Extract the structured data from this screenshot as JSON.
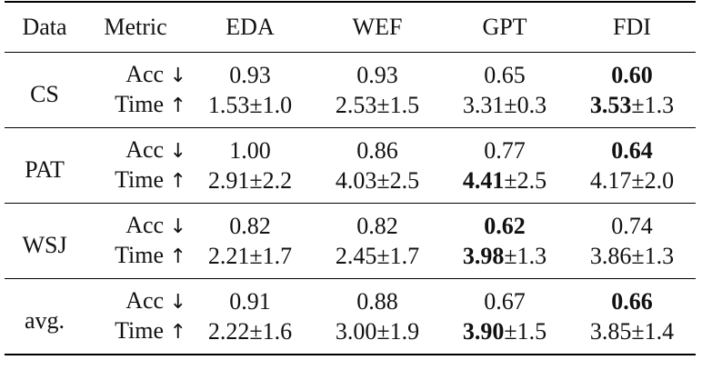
{
  "table": {
    "header": {
      "data": "Data",
      "metric": "Metric",
      "methods": [
        "EDA",
        "WEF",
        "GPT",
        "FDI"
      ]
    },
    "rows": [
      {
        "dataset": "CS",
        "acc": {
          "label": "Acc",
          "arrow": "↓",
          "cells": [
            {
              "main": "0.93",
              "pm": "",
              "bold": false
            },
            {
              "main": "0.93",
              "pm": "",
              "bold": false
            },
            {
              "main": "0.65",
              "pm": "",
              "bold": false
            },
            {
              "main": "0.60",
              "pm": "",
              "bold": true
            }
          ]
        },
        "time": {
          "label": "Time",
          "arrow": "↑",
          "cells": [
            {
              "main": "1.53",
              "pm": "±1.0",
              "bold": false
            },
            {
              "main": "2.53",
              "pm": "±1.5",
              "bold": false
            },
            {
              "main": "3.31",
              "pm": "±0.3",
              "bold": false
            },
            {
              "main": "3.53",
              "pm": "±1.3",
              "bold": true
            }
          ]
        }
      },
      {
        "dataset": "PAT",
        "acc": {
          "label": "Acc",
          "arrow": "↓",
          "cells": [
            {
              "main": "1.00",
              "pm": "",
              "bold": false
            },
            {
              "main": "0.86",
              "pm": "",
              "bold": false
            },
            {
              "main": "0.77",
              "pm": "",
              "bold": false
            },
            {
              "main": "0.64",
              "pm": "",
              "bold": true
            }
          ]
        },
        "time": {
          "label": "Time",
          "arrow": "↑",
          "cells": [
            {
              "main": "2.91",
              "pm": "±2.2",
              "bold": false
            },
            {
              "main": "4.03",
              "pm": "±2.5",
              "bold": false
            },
            {
              "main": "4.41",
              "pm": "±2.5",
              "bold": true
            },
            {
              "main": "4.17",
              "pm": "±2.0",
              "bold": false
            }
          ]
        }
      },
      {
        "dataset": "WSJ",
        "acc": {
          "label": "Acc",
          "arrow": "↓",
          "cells": [
            {
              "main": "0.82",
              "pm": "",
              "bold": false
            },
            {
              "main": "0.82",
              "pm": "",
              "bold": false
            },
            {
              "main": "0.62",
              "pm": "",
              "bold": true
            },
            {
              "main": "0.74",
              "pm": "",
              "bold": false
            }
          ]
        },
        "time": {
          "label": "Time",
          "arrow": "↑",
          "cells": [
            {
              "main": "2.21",
              "pm": "±1.7",
              "bold": false
            },
            {
              "main": "2.45",
              "pm": "±1.7",
              "bold": false
            },
            {
              "main": "3.98",
              "pm": "±1.3",
              "bold": true
            },
            {
              "main": "3.86",
              "pm": "±1.3",
              "bold": false
            }
          ]
        }
      },
      {
        "dataset": "avg.",
        "acc": {
          "label": "Acc",
          "arrow": "↓",
          "cells": [
            {
              "main": "0.91",
              "pm": "",
              "bold": false
            },
            {
              "main": "0.88",
              "pm": "",
              "bold": false
            },
            {
              "main": "0.67",
              "pm": "",
              "bold": false
            },
            {
              "main": "0.66",
              "pm": "",
              "bold": true
            }
          ]
        },
        "time": {
          "label": "Time",
          "arrow": "↑",
          "cells": [
            {
              "main": "2.22",
              "pm": "±1.6",
              "bold": false
            },
            {
              "main": "3.00",
              "pm": "±1.9",
              "bold": false
            },
            {
              "main": "3.90",
              "pm": "±1.5",
              "bold": true
            },
            {
              "main": "3.85",
              "pm": "±1.4",
              "bold": false
            }
          ]
        }
      }
    ]
  }
}
